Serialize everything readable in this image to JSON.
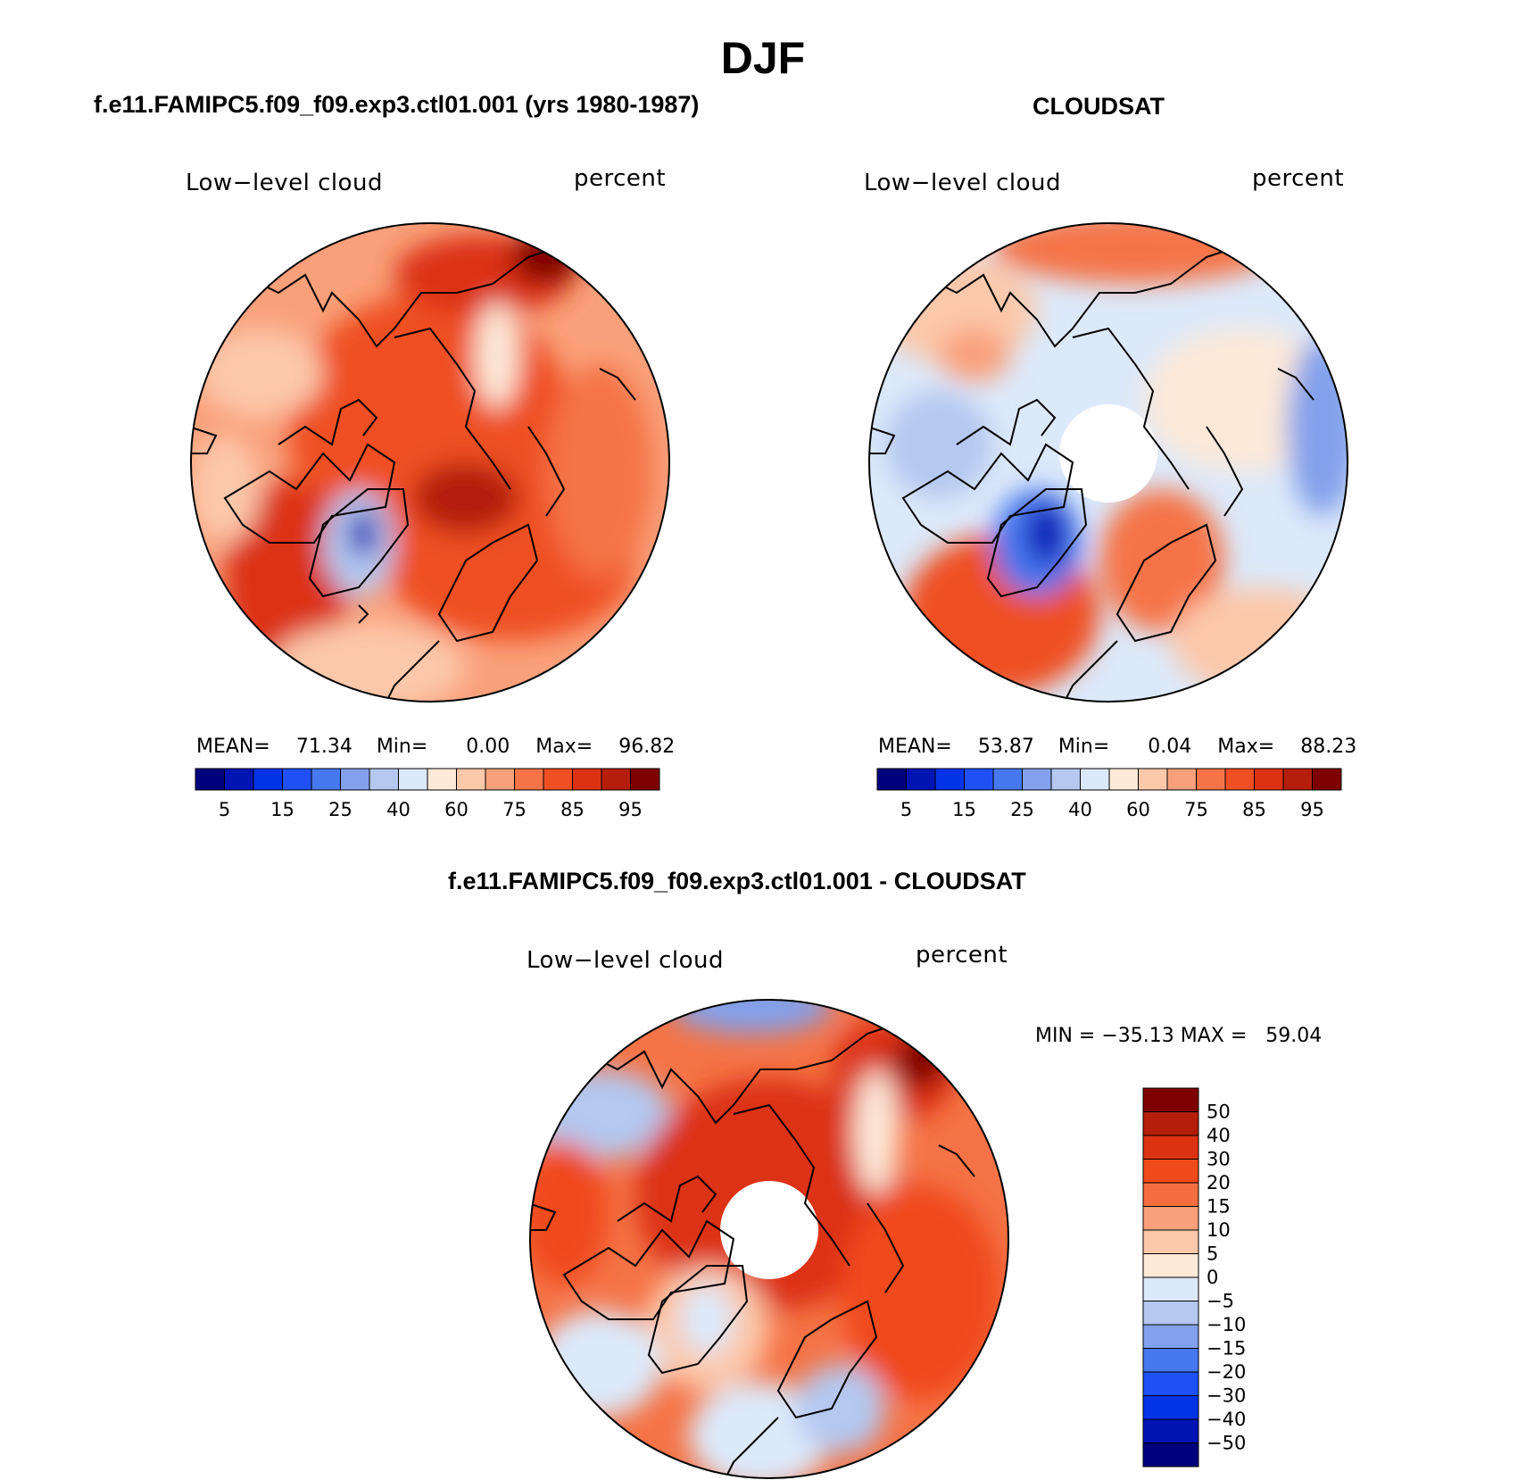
{
  "season": "DJF",
  "panels": {
    "model": {
      "title": "f.e11.FAMIPC5.f09_f09.exp3.ctl01.001 (yrs 1980-1987)",
      "variable": "Low−level cloud",
      "units": "percent",
      "mean_label": "MEAN=",
      "mean": "71.34",
      "min_label": "Min=",
      "min": "0.00",
      "max_label": "Max=",
      "max": "96.82"
    },
    "obs": {
      "title": "CLOUDSAT",
      "variable": "Low−level cloud",
      "units": "percent",
      "mean_label": "MEAN=",
      "mean": "53.87",
      "min_label": "Min=",
      "min": "0.04",
      "max_label": "Max=",
      "max": "88.23"
    },
    "diff": {
      "title": "f.e11.FAMIPC5.f09_f09.exp3.ctl01.001 - CLOUDSAT",
      "variable": "Low−level cloud",
      "units": "percent",
      "minmax": "MIN = −35.13 MAX =   59.04"
    }
  },
  "colorbar_abs": {
    "colors": [
      "#00007f",
      "#0014b4",
      "#0032e6",
      "#1e50f5",
      "#4678f0",
      "#82a0eb",
      "#b4c8f0",
      "#dce9fa",
      "#fde9d8",
      "#fcc8aa",
      "#f9a07a",
      "#f57346",
      "#ef4f23",
      "#dc3212",
      "#b41e0a",
      "#7f0000"
    ],
    "labels": [
      "5",
      "15",
      "25",
      "40",
      "60",
      "75",
      "85",
      "95"
    ]
  },
  "colorbar_diff": {
    "colors": [
      "#7f0000",
      "#b41e0a",
      "#dc3212",
      "#f04a1a",
      "#f46e3f",
      "#f9a07a",
      "#fcc8aa",
      "#fde9d8",
      "#dce9fa",
      "#b4c8f0",
      "#82a0eb",
      "#4678f0",
      "#1e50f5",
      "#0032e6",
      "#0014b4",
      "#00007f"
    ],
    "labels": [
      "50",
      "40",
      "30",
      "20",
      "15",
      "10",
      "5",
      "0",
      "−5",
      "−10",
      "−15",
      "−20",
      "−30",
      "−40",
      "−50"
    ]
  }
}
